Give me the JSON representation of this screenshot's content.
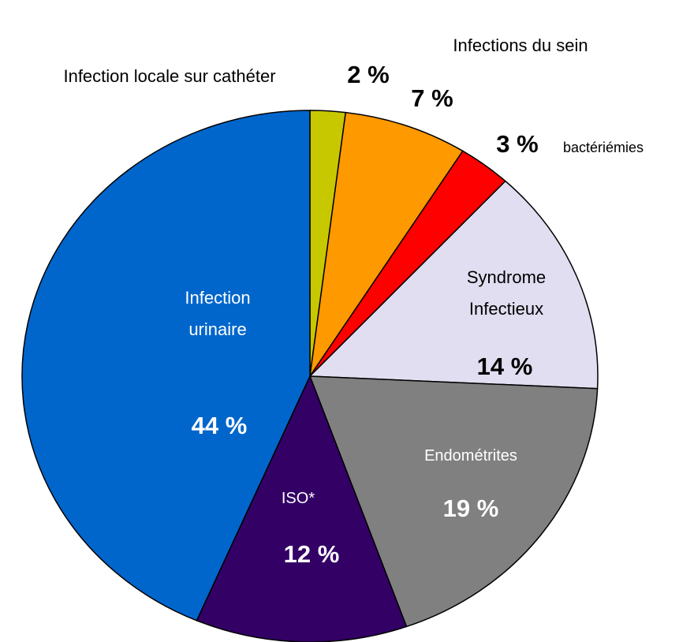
{
  "chart_data": {
    "type": "pie",
    "categories": [
      "Infection locale sur cathéter",
      "Infections du sein",
      "bactériémies",
      "Syndrome Infectieux",
      "Endométrites",
      "ISO*",
      "Infection urinaire"
    ],
    "values": [
      2,
      7,
      3,
      14,
      19,
      12,
      44
    ],
    "value_labels": [
      "2 %",
      "7 %",
      "3 %",
      "14 %",
      "19 %",
      "12 %",
      "44 %"
    ],
    "colors": [
      "#c8c800",
      "#ff9900",
      "#ff0000",
      "#e0def0",
      "#808080",
      "#330066",
      "#0066cc"
    ]
  }
}
